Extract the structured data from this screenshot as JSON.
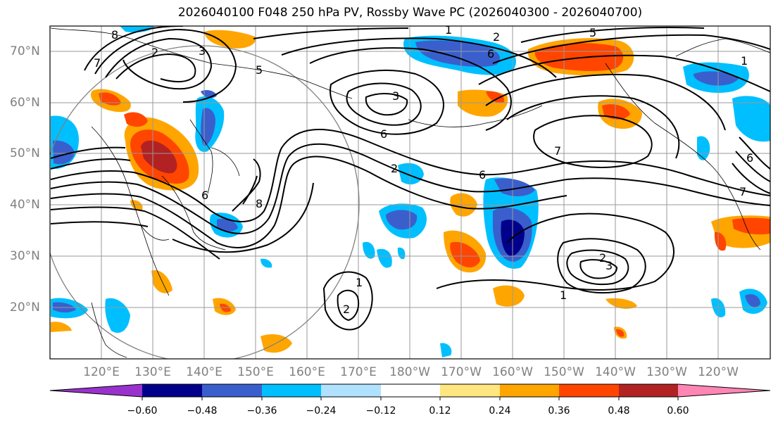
{
  "title": "2026040100 F048 250 hPa PV, Rossby Wave PC (2026040300 - 2026040700)",
  "map": {
    "lat_labels": [
      "70°N",
      "60°N",
      "50°N",
      "40°N",
      "30°N",
      "20°N"
    ],
    "lon_labels": [
      "120°E",
      "130°E",
      "140°E",
      "150°E",
      "160°E",
      "170°E",
      "180°W",
      "170°W",
      "160°W",
      "150°W",
      "140°W",
      "130°W",
      "120°W"
    ],
    "contour_labels": [
      "1",
      "2",
      "3",
      "5",
      "6",
      "7",
      "6",
      "7",
      "8",
      "2",
      "3",
      "1",
      "2",
      "6",
      "6",
      "1",
      "2",
      "3",
      "5",
      "7",
      "6",
      "8",
      "2",
      "1"
    ]
  },
  "colorbar": {
    "ticks": [
      "−0.60",
      "−0.48",
      "−0.36",
      "−0.24",
      "−0.12",
      "0.12",
      "0.24",
      "0.36",
      "0.48",
      "0.60"
    ],
    "colors": [
      "#9932cc",
      "#00008b",
      "#3a5fcd",
      "#00bfff",
      "#b0e2ff",
      "#ffffff",
      "#ffe680",
      "#ffa500",
      "#ff4500",
      "#b22222",
      "#ff85b5"
    ]
  }
}
